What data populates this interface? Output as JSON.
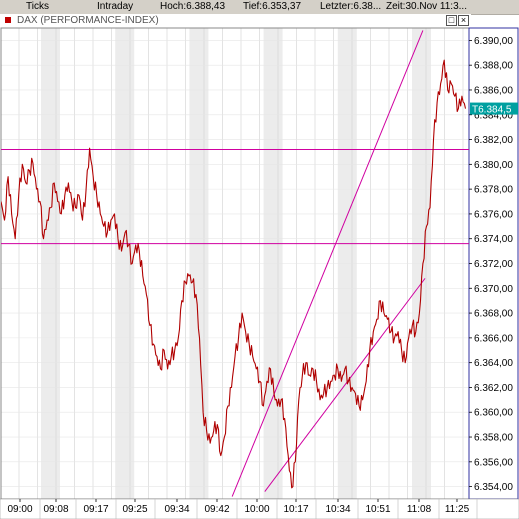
{
  "header": {
    "ticks_label": "Ticks",
    "period_label": "Intraday",
    "high_label": "Hoch:6.388,43",
    "low_label": "Tief:6.353,37",
    "last_label": "Letzter:6.38...",
    "time_label": "Zeit:30.Nov 11:3..."
  },
  "window": {
    "title": "DAX (PERFORMANCE-INDEX)",
    "minimize_label": "□",
    "close_label": "×"
  },
  "colors": {
    "price_line": "#b00000",
    "trend_lines": "#d000a0",
    "current_price_bg": "#00a0a0",
    "axis_panel_border": "#3030a0",
    "grid_band": "#ececec"
  },
  "chart_data": {
    "type": "line",
    "title": "DAX (PERFORMANCE-INDEX)",
    "x_ticks": [
      "09:00",
      "09:08",
      "09:17",
      "09:25",
      "09:34",
      "09:42",
      "10:00",
      "10:17",
      "10:34",
      "10:51",
      "11:08",
      "11:25"
    ],
    "y_ticks": [
      "6.390,00",
      "6.388,00",
      "6.386,00",
      "6.384,00",
      "6.382,00",
      "6.380,00",
      "6.378,00",
      "6.376,00",
      "6.374,00",
      "6.372,00",
      "6.370,00",
      "6.368,00",
      "6.366,00",
      "6.364,00",
      "6.362,00",
      "6.360,00",
      "6.358,00",
      "6.356,00",
      "6.354,00"
    ],
    "ylim": [
      6353,
      6391
    ],
    "current_price_label": "T6.384,5",
    "horizontal_lines": [
      6381.2,
      6373.6
    ],
    "trend_lines": [
      {
        "from": [
          32.6,
          6353.2
        ],
        "to": [
          59.5,
          6390.8
        ]
      },
      {
        "from": [
          37.2,
          6353.6
        ],
        "to": [
          59.8,
          6370.8
        ]
      }
    ],
    "series": [
      {
        "values": [
          [
            0,
            6377.0
          ],
          [
            0.5,
            6375.5
          ],
          [
            1,
            6379.0
          ],
          [
            1.5,
            6376.0
          ],
          [
            2,
            6374.0
          ],
          [
            2.5,
            6377.5
          ],
          [
            3,
            6380.0
          ],
          [
            3.5,
            6378.5
          ],
          [
            4,
            6379.5
          ],
          [
            4.5,
            6380.1
          ],
          [
            5,
            6378.0
          ],
          [
            5.5,
            6377.0
          ],
          [
            6,
            6374.0
          ],
          [
            6.5,
            6375.5
          ],
          [
            7,
            6376.5
          ],
          [
            7.5,
            6378.5
          ],
          [
            8,
            6377.0
          ],
          [
            8.5,
            6376.0
          ],
          [
            9,
            6377.5
          ],
          [
            9.5,
            6378.5
          ],
          [
            10,
            6377.0
          ],
          [
            10.5,
            6376.5
          ],
          [
            11,
            6377.5
          ],
          [
            11.5,
            6375.5
          ],
          [
            12,
            6378.0
          ],
          [
            12.5,
            6381.3
          ],
          [
            13,
            6379.0
          ],
          [
            13.5,
            6377.5
          ],
          [
            14,
            6376.0
          ],
          [
            14.5,
            6375.0
          ],
          [
            15,
            6374.5
          ],
          [
            15.5,
            6375.5
          ],
          [
            16,
            6376.0
          ],
          [
            16.5,
            6374.0
          ],
          [
            17,
            6373.0
          ],
          [
            17.5,
            6374.5
          ],
          [
            18,
            6373.5
          ],
          [
            18.5,
            6372.0
          ],
          [
            19,
            6373.5
          ],
          [
            19.5,
            6373.0
          ],
          [
            20,
            6371.0
          ],
          [
            20.5,
            6369.5
          ],
          [
            21,
            6367.0
          ],
          [
            21.5,
            6365.5
          ],
          [
            22,
            6364.5
          ],
          [
            22.5,
            6363.5
          ],
          [
            23,
            6365.0
          ],
          [
            23.5,
            6363.5
          ],
          [
            24,
            6364.5
          ],
          [
            24.5,
            6365.0
          ],
          [
            25,
            6366.0
          ],
          [
            25.5,
            6369.0
          ],
          [
            26,
            6370.5
          ],
          [
            26.5,
            6371.0
          ],
          [
            27,
            6370.5
          ],
          [
            27.5,
            6369.5
          ],
          [
            28,
            6366.0
          ],
          [
            28.5,
            6360.0
          ],
          [
            29,
            6358.5
          ],
          [
            29.5,
            6357.5
          ],
          [
            30,
            6358.5
          ],
          [
            30.5,
            6359.0
          ],
          [
            31,
            6356.5
          ],
          [
            31.5,
            6358.0
          ],
          [
            32,
            6360.5
          ],
          [
            32.5,
            6362.0
          ],
          [
            33,
            6364.5
          ],
          [
            33.5,
            6366.0
          ],
          [
            34,
            6368.0
          ],
          [
            34.5,
            6366.5
          ],
          [
            35,
            6365.5
          ],
          [
            35.5,
            6364.5
          ],
          [
            36,
            6363.5
          ],
          [
            36.5,
            6362.5
          ],
          [
            37,
            6360.5
          ],
          [
            37.5,
            6362.5
          ],
          [
            38,
            6363.5
          ],
          [
            38.5,
            6361.5
          ],
          [
            39,
            6360.5
          ],
          [
            39.5,
            6361.0
          ],
          [
            40,
            6359.5
          ],
          [
            40.5,
            6356.5
          ],
          [
            41,
            6353.9
          ],
          [
            41.5,
            6356.0
          ],
          [
            42,
            6361.0
          ],
          [
            42.5,
            6363.0
          ],
          [
            43,
            6364.0
          ],
          [
            43.5,
            6363.0
          ],
          [
            44,
            6363.5
          ],
          [
            44.5,
            6362.5
          ],
          [
            45,
            6361.0
          ],
          [
            45.5,
            6361.5
          ],
          [
            46,
            6362.0
          ],
          [
            46.5,
            6362.5
          ],
          [
            47,
            6363.0
          ],
          [
            47.5,
            6363.5
          ],
          [
            48,
            6362.5
          ],
          [
            48.5,
            6363.5
          ],
          [
            49,
            6362.5
          ],
          [
            49.5,
            6362.0
          ],
          [
            50,
            6361.5
          ],
          [
            50.5,
            6360.5
          ],
          [
            51,
            6361.0
          ],
          [
            51.5,
            6362.5
          ],
          [
            52,
            6365.0
          ],
          [
            52.5,
            6366.5
          ],
          [
            53,
            6367.5
          ],
          [
            53.5,
            6369.0
          ],
          [
            54,
            6368.0
          ],
          [
            54.5,
            6367.5
          ],
          [
            55,
            6366.5
          ],
          [
            55.5,
            6366.0
          ],
          [
            56,
            6366.5
          ],
          [
            56.5,
            6365.0
          ],
          [
            57,
            6364.0
          ],
          [
            57.5,
            6366.0
          ],
          [
            58,
            6367.0
          ],
          [
            58.5,
            6366.5
          ],
          [
            59,
            6368.0
          ],
          [
            59.5,
            6372.0
          ],
          [
            60,
            6375.0
          ],
          [
            60.5,
            6376.5
          ],
          [
            61,
            6382.0
          ],
          [
            61.5,
            6385.0
          ],
          [
            62,
            6386.5
          ],
          [
            62.5,
            6388.4
          ],
          [
            63,
            6386.0
          ],
          [
            63.5,
            6386.5
          ],
          [
            64,
            6385.5
          ],
          [
            64.5,
            6384.5
          ],
          [
            65,
            6385.5
          ],
          [
            65.5,
            6384.5
          ]
        ]
      }
    ],
    "grid": true,
    "legend": "none"
  }
}
